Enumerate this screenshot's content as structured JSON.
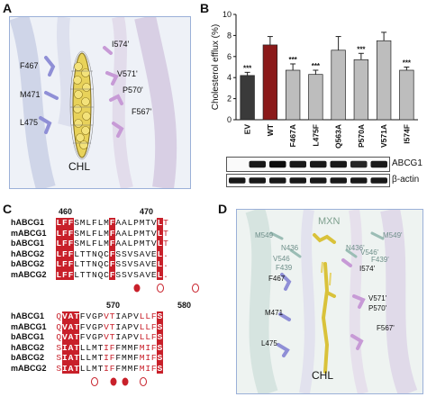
{
  "panels": {
    "a": {
      "letter": "A",
      "residue_labels": [
        "I574'",
        "F467",
        "V571'",
        "P570'",
        "M471",
        "F567'",
        "L475"
      ],
      "ligand_label": "CHL"
    },
    "b": {
      "letter": "B",
      "western_blot_labels": [
        "ABCG1",
        "β-actin"
      ]
    },
    "c": {
      "letter": "C",
      "block1": {
        "positions": [
          "460",
          "470"
        ],
        "rows": [
          {
            "name": "hABCG1",
            "seq": "LFFSMLFLMFAALPMTVLT"
          },
          {
            "name": "mABCG1",
            "seq": "LFFSMLFLMFAALPMTVLT"
          },
          {
            "name": "bABCG1",
            "seq": "LFFSMLFLMFAALPMTVLT"
          },
          {
            "name": "hABCG2",
            "seq": "LFFLTTNQCFSSVSAVEL."
          },
          {
            "name": "bABCG2",
            "seq": "LFFLTTNQCFSSVSAVEL."
          },
          {
            "name": "mABCG2",
            "seq": "LFFLTTNQCFSSVSAVEL."
          }
        ]
      },
      "block2": {
        "positions": [
          "570",
          "580"
        ],
        "rows": [
          {
            "name": "hABCG1",
            "seq": "QVATFVGPVTIAPVLLFS"
          },
          {
            "name": "mABCG1",
            "seq": "QVATFVGPVTIAPVLLFS"
          },
          {
            "name": "bABCG1",
            "seq": "QVATFVGPVTIAPVLLFS"
          },
          {
            "name": "hABCG2",
            "seq": "SIATLLMTIFFMMFMIFS"
          },
          {
            "name": "bABCG2",
            "seq": "SIATLLMTIFFMMFMIFS"
          },
          {
            "name": "mABCG2",
            "seq": "SIATLLMTIFFMMFMIFS"
          }
        ]
      }
    },
    "d": {
      "letter": "D",
      "ligand_top_label": "MXN",
      "grey_labels": [
        "M549",
        "M549'",
        "N436",
        "N436'",
        "V546",
        "V546'",
        "F439",
        "F439'"
      ],
      "residue_labels": [
        "I574'",
        "F467",
        "V571'",
        "P570'",
        "M471",
        "F567'",
        "L475"
      ],
      "ligand_label": "CHL"
    }
  },
  "chart_data": {
    "type": "bar",
    "ylabel": "Cholesterol efflux (%)",
    "ylim": [
      0,
      10
    ],
    "yticks": [
      "0",
      "2",
      "4",
      "6",
      "8",
      "10"
    ],
    "categories": [
      "EV",
      "WT",
      "F467A",
      "L475F",
      "Q563A",
      "P570A",
      "V571A",
      "I574F"
    ],
    "values": [
      4.2,
      7.1,
      4.7,
      4.3,
      6.6,
      5.7,
      7.5,
      4.7
    ],
    "errors": [
      0.3,
      0.8,
      0.6,
      0.4,
      1.3,
      0.6,
      0.8,
      0.3
    ],
    "significance": [
      "***",
      "",
      "***",
      "***",
      "",
      "***",
      "",
      "***"
    ],
    "colors": [
      "#3a3a3a",
      "#8b1a1a",
      "#bdbdbd",
      "#bdbdbd",
      "#bdbdbd",
      "#bdbdbd",
      "#bdbdbd",
      "#bdbdbd"
    ]
  }
}
